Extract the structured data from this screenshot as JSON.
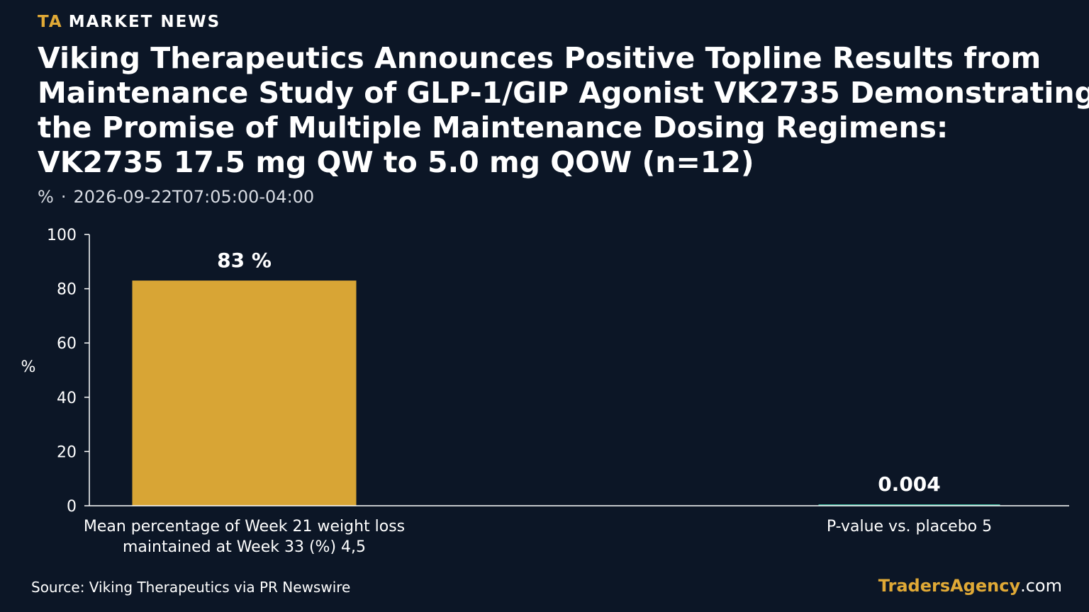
{
  "brand": {
    "prefix": "TA",
    "name": "MARKET NEWS"
  },
  "headline": {
    "lines": [
      "Viking Therapeutics Announces Positive Topline Results from",
      "Maintenance Study of GLP-1/GIP Agonist VK2735 Demonstrating",
      "the Promise of Multiple Maintenance Dosing Regimens:",
      "VK2735 17.5 mg QW to 5.0 mg QOW (n=12)"
    ]
  },
  "meta": {
    "unit": "%",
    "separator": "·",
    "timestamp": "2026-09-22T07:05:00-04:00"
  },
  "chart_data": {
    "type": "bar",
    "ylabel": "%",
    "ylim": [
      0,
      100
    ],
    "yticks": [
      "0",
      "20",
      "40",
      "60",
      "80",
      "100"
    ],
    "categories": [
      [
        "Mean percentage of Week 21 weight loss",
        "maintained at Week 33 (%) 4,5"
      ],
      [
        "P-value vs.  placebo 5"
      ]
    ],
    "values": [
      83,
      0.004
    ],
    "value_labels": [
      "83 %",
      "0.004"
    ],
    "colors": [
      "#d8a535",
      "#3cb39a"
    ]
  },
  "footer": {
    "source": "Source: Viking Therapeutics via PR Newswire",
    "brand_main": "TradersAgency",
    "brand_suffix": ".com"
  }
}
